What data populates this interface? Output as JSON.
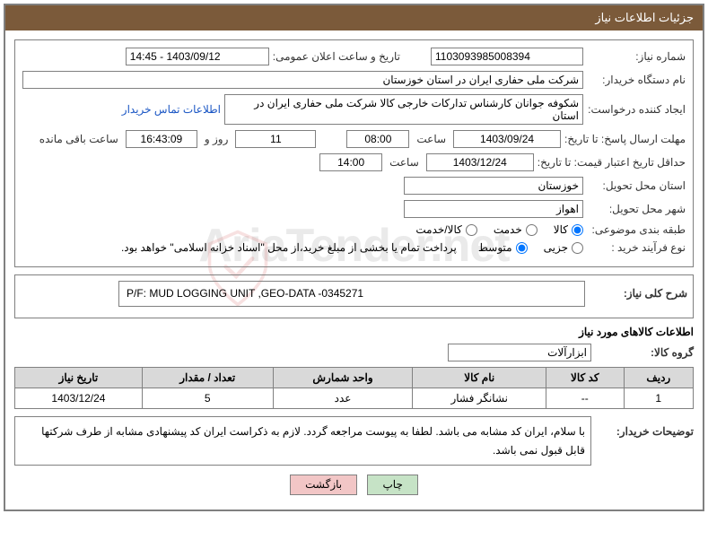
{
  "header": {
    "title": "جزئیات اطلاعات نیاز"
  },
  "fields": {
    "need_number_label": "شماره نیاز:",
    "need_number": "1103093985008394",
    "announce_label": "تاریخ و ساعت اعلان عمومی:",
    "announce_value": "1403/09/12 - 14:45",
    "buyer_label": "نام دستگاه خریدار:",
    "buyer_value": "شرکت ملی حفاری ایران در استان خوزستان",
    "requester_label": "ایجاد کننده درخواست:",
    "requester_value": "شکوفه جوانان کارشناس تدارکات خارجی کالا شرکت ملی حفاری ایران در استان",
    "contact_link": "اطلاعات تماس خریدار",
    "reply_deadline_label": "مهلت ارسال پاسخ: تا تاریخ:",
    "reply_deadline_date": "1403/09/24",
    "time_word": "ساعت",
    "reply_deadline_time": "08:00",
    "days_remaining": "11",
    "days_and": "روز و",
    "time_remaining": "16:43:09",
    "remaining_label": "ساعت باقی مانده",
    "quote_validity_label": "حداقل تاریخ اعتبار قیمت: تا تاریخ:",
    "quote_validity_date": "1403/12/24",
    "quote_validity_time": "14:00",
    "delivery_province_label": "استان محل تحویل:",
    "delivery_province": "خوزستان",
    "delivery_city_label": "شهر محل تحویل:",
    "delivery_city": "اهواز",
    "category_label": "طبقه بندی موضوعی:",
    "opt_goods": "کالا",
    "opt_service": "خدمت",
    "opt_goods_service": "کالا/خدمت",
    "process_label": "نوع فرآیند خرید :",
    "opt_partial": "جزیی",
    "opt_medium": "متوسط",
    "payment_note": "پرداخت تمام یا بخشی از مبلغ خرید،از محل \"اسناد خزانه اسلامی\" خواهد بود.",
    "general_desc_label": "شرح کلی نیاز:",
    "general_desc": "P/F: MUD LOGGING UNIT ,GEO-DATA -0345271",
    "items_title": "اطلاعات کالاهای مورد نیاز",
    "group_label": "گروه کالا:",
    "group_value": "ابزارآلات"
  },
  "table": {
    "headers": [
      "ردیف",
      "کد کالا",
      "نام کالا",
      "واحد شمارش",
      "تعداد / مقدار",
      "تاریخ نیاز"
    ],
    "rows": [
      [
        "1",
        "--",
        "نشانگر فشار",
        "عدد",
        "5",
        "1403/12/24"
      ]
    ]
  },
  "buyer_note": {
    "label": "توضیحات خریدار:",
    "text": "با سلام، ایران کد مشابه می باشد. لطفا به پیوست مراجعه گردد. لازم به ذکراست ایران کد پیشنهادی مشابه از طرف شرکتها قابل قبول نمی باشد."
  },
  "buttons": {
    "print": "چاپ",
    "back": "بازگشت"
  },
  "watermark": "AriaTender.net",
  "colors": {
    "header_bg": "#7b5a3a",
    "border": "#808080",
    "th_bg": "#d9d9d9",
    "link": "#1a56c4",
    "btn_print": "#c6e3c6",
    "btn_back": "#f2c6c6"
  }
}
